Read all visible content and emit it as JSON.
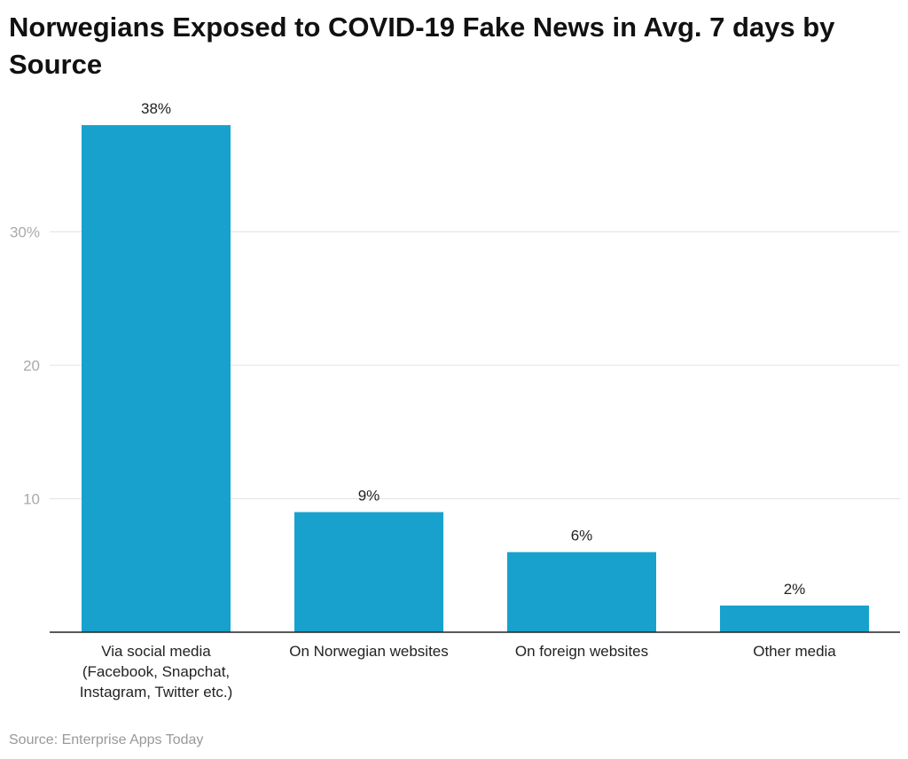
{
  "chart_data": {
    "type": "bar",
    "title": "Norwegians Exposed to COVID-19 Fake News in Avg. 7 days by Source",
    "categories": [
      [
        "Via social media",
        "(Facebook, Snapchat,",
        "Instagram, Twitter etc.)"
      ],
      [
        "On Norwegian websites"
      ],
      [
        "On foreign websites"
      ],
      [
        "Other media"
      ]
    ],
    "values": [
      38,
      9,
      6,
      2
    ],
    "data_labels": [
      "38%",
      "9%",
      "6%",
      "2%"
    ],
    "yticks": [
      10,
      20,
      30
    ],
    "ytick_labels": [
      "10",
      "20",
      "30%"
    ],
    "ylim": [
      0,
      40
    ],
    "grid": true,
    "bar_color": "#18a1cd",
    "source": "Source: Enterprise Apps Today"
  }
}
